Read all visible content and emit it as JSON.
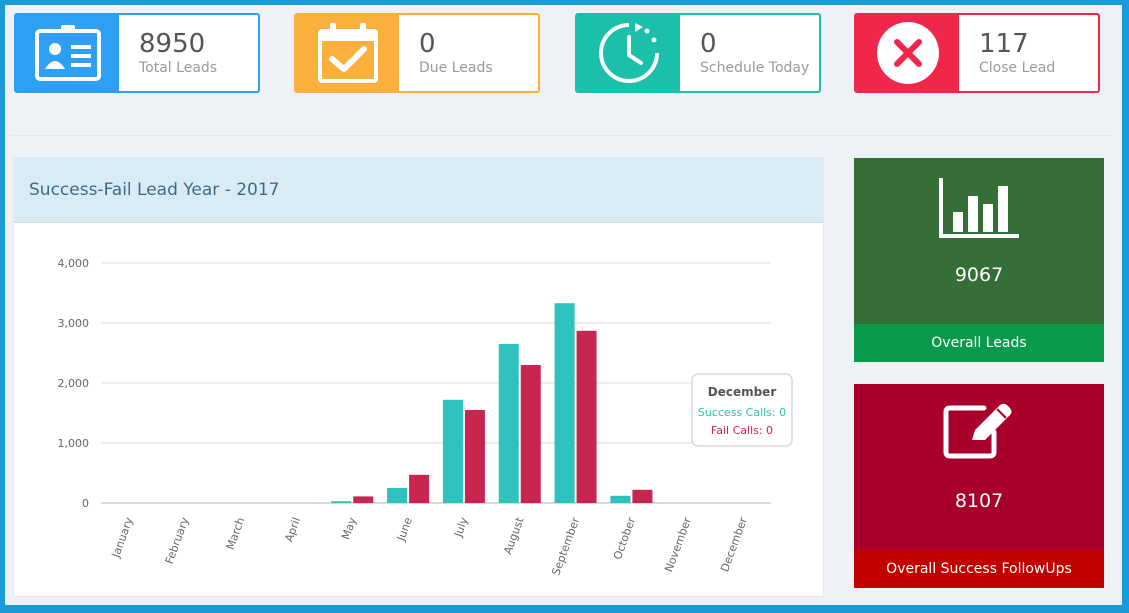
{
  "stats": [
    {
      "value": "8950",
      "label": "Total Leads",
      "color": "#2e9ff3",
      "icon": "id-card-icon"
    },
    {
      "value": "0",
      "label": "Due Leads",
      "color": "#fbb03b",
      "icon": "calendar-check-icon"
    },
    {
      "value": "0",
      "label": "Schedule Today",
      "color": "#1cbfa9",
      "icon": "clock-icon"
    },
    {
      "value": "117",
      "label": "Close Lead",
      "color": "#f0264a",
      "icon": "close-circle-icon"
    }
  ],
  "chart_panel": {
    "title": "Success-Fail Lead Year - 2017"
  },
  "chart_data": {
    "type": "bar",
    "title": "Success-Fail Lead Year - 2017",
    "categories": [
      "January",
      "February",
      "March",
      "April",
      "May",
      "June",
      "July",
      "August",
      "September",
      "October",
      "November",
      "December"
    ],
    "series": [
      {
        "name": "Success Calls",
        "color": "#2ec1bd",
        "values": [
          0,
          0,
          0,
          0,
          30,
          250,
          1720,
          2650,
          3330,
          120,
          0,
          0
        ]
      },
      {
        "name": "Fail Calls",
        "color": "#c9264f",
        "values": [
          0,
          0,
          0,
          0,
          110,
          470,
          1550,
          2300,
          2870,
          220,
          0,
          0
        ]
      }
    ],
    "ylim": [
      0,
      4000
    ],
    "yticks": [
      0,
      1000,
      2000,
      3000,
      4000
    ],
    "ytick_labels": [
      "0",
      "1,000",
      "2,000",
      "3,000",
      "4,000"
    ],
    "grid": true,
    "tooltip": {
      "title": "December",
      "lines": [
        "Success Calls: 0",
        "Fail Calls: 0"
      ]
    }
  },
  "side_cards": [
    {
      "value": "9067",
      "footer": "Overall Leads",
      "bg": "#356e36",
      "footer_bg": "#0a9a4b",
      "icon": "bar-chart-icon"
    },
    {
      "value": "8107",
      "footer": "Overall Success FollowUps",
      "bg": "#a8002a",
      "footer_bg": "#c20000",
      "icon": "edit-icon"
    }
  ]
}
